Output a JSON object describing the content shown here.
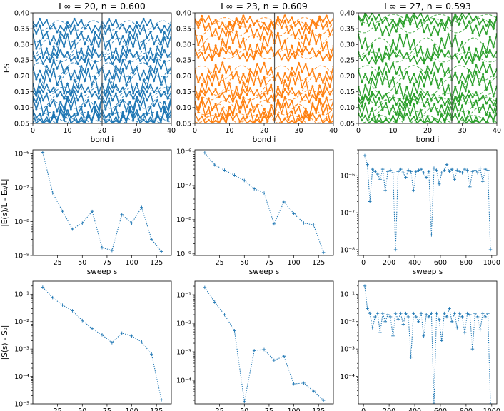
{
  "chart_data": [
    {
      "type": "line",
      "panel": "es-0",
      "title": "L∞ = 20, n = 0.600",
      "color": "#1f77b4",
      "xlabel": "bond i",
      "ylabel": "ES",
      "xlim": [
        0,
        40
      ],
      "ylim": [
        0.05,
        0.4
      ],
      "xticks": [
        0,
        10,
        20,
        30,
        40
      ],
      "yticks": [
        0.05,
        0.1,
        0.15,
        0.2,
        0.25,
        0.3,
        0.35,
        0.4
      ],
      "marker_x": 20,
      "period": 10,
      "levels": [
        0.36,
        0.33,
        0.29,
        0.26,
        0.22,
        0.18,
        0.15,
        0.12,
        0.09,
        0.07,
        0.06
      ]
    },
    {
      "type": "line",
      "panel": "es-1",
      "title": "L∞ = 23, n = 0.609",
      "color": "#ff7f0e",
      "xlabel": "bond i",
      "ylabel": "",
      "xlim": [
        0,
        40
      ],
      "ylim": [
        0.05,
        0.4
      ],
      "xticks": [
        0,
        10,
        20,
        30,
        40
      ],
      "yticks": [
        0.05,
        0.1,
        0.15,
        0.2,
        0.25,
        0.3,
        0.35,
        0.4
      ],
      "marker_x": 23,
      "period": 11.5,
      "levels": [
        0.37,
        0.35,
        0.3,
        0.27,
        0.21,
        0.17,
        0.14,
        0.1,
        0.08,
        0.06
      ]
    },
    {
      "type": "line",
      "panel": "es-2",
      "title": "L∞ = 27, n = 0.593",
      "color": "#2ca02c",
      "xlabel": "bond i",
      "ylabel": "",
      "xlim": [
        0,
        40
      ],
      "ylim": [
        0.05,
        0.4
      ],
      "xticks": [
        0,
        10,
        20,
        30,
        40
      ],
      "yticks": [
        0.05,
        0.1,
        0.15,
        0.2,
        0.25,
        0.3,
        0.35,
        0.4
      ],
      "marker_x": 27,
      "period": 13.5,
      "levels": [
        0.38,
        0.36,
        0.29,
        0.26,
        0.21,
        0.17,
        0.13,
        0.11,
        0.07,
        0.06
      ]
    },
    {
      "type": "line",
      "panel": "energy-0",
      "scale": "log",
      "color": "#1f77b4",
      "xlabel": "sweep s",
      "ylabel": "|E(s)/L - E₀/L|",
      "xlim": [
        0,
        140
      ],
      "ylim": [
        1e-09,
        1.3e-06
      ],
      "xticks": [
        25,
        50,
        75,
        100,
        125
      ],
      "yticks": [
        {
          "v": 1e-09,
          "label": "10⁻⁹"
        },
        {
          "v": 1e-08,
          "label": "10⁻⁸"
        },
        {
          "v": 1e-07,
          "label": "10⁻⁷"
        },
        {
          "v": 1e-06,
          "label": "10⁻⁶"
        }
      ],
      "x": [
        10,
        20,
        30,
        40,
        50,
        60,
        70,
        80,
        90,
        100,
        110,
        120,
        130
      ],
      "y": [
        1.1e-06,
        7e-08,
        2e-08,
        6e-09,
        9e-09,
        2e-08,
        1.7e-09,
        1.4e-09,
        1.6e-08,
        9e-09,
        2.6e-08,
        3e-09,
        1.3e-09
      ]
    },
    {
      "type": "line",
      "panel": "energy-1",
      "scale": "log",
      "color": "#1f77b4",
      "xlabel": "sweep s",
      "ylabel": "",
      "xlim": [
        0,
        140
      ],
      "ylim": [
        9e-10,
        1.1e-06
      ],
      "xticks": [
        25,
        50,
        75,
        100,
        125
      ],
      "yticks": [
        {
          "v": 1e-09,
          "label": "10⁻⁹"
        },
        {
          "v": 1e-08,
          "label": "10⁻⁸"
        },
        {
          "v": 1e-07,
          "label": "10⁻⁷"
        },
        {
          "v": 1e-06,
          "label": "10⁻⁶"
        }
      ],
      "x": [
        10,
        20,
        30,
        40,
        50,
        60,
        70,
        80,
        90,
        100,
        110,
        120,
        130
      ],
      "y": [
        9e-07,
        4e-07,
        2.8e-07,
        2e-07,
        1.4e-07,
        8e-08,
        6e-08,
        7.5e-09,
        3.3e-08,
        1.5e-08,
        8e-09,
        7e-09,
        1.1e-09
      ]
    },
    {
      "type": "line",
      "panel": "energy-2",
      "scale": "log",
      "color": "#1f77b4",
      "xlabel": "sweep s",
      "ylabel": "",
      "xlim": [
        -40,
        1040
      ],
      "ylim": [
        7e-09,
        5e-06
      ],
      "xticks": [
        0,
        200,
        400,
        600,
        800,
        1000
      ],
      "yticks": [
        {
          "v": 1e-08,
          "label": "10⁻⁸"
        },
        {
          "v": 1e-07,
          "label": "10⁻⁷"
        },
        {
          "v": 1e-06,
          "label": "10⁻⁶"
        }
      ],
      "x": [
        10,
        30,
        50,
        70,
        90,
        110,
        130,
        150,
        170,
        190,
        210,
        230,
        250,
        270,
        290,
        310,
        330,
        350,
        370,
        390,
        410,
        430,
        450,
        470,
        490,
        510,
        530,
        550,
        570,
        590,
        610,
        630,
        650,
        670,
        690,
        710,
        730,
        750,
        770,
        790,
        810,
        830,
        850,
        870,
        890,
        910,
        930,
        950,
        970,
        990
      ],
      "y": [
        3.5e-06,
        2e-06,
        2e-07,
        1.5e-06,
        1.3e-06,
        1.1e-06,
        8e-07,
        1.5e-06,
        4e-07,
        1.3e-06,
        1.4e-06,
        1.2e-06,
        1e-08,
        1.3e-06,
        1.5e-06,
        1.2e-06,
        9e-07,
        1.4e-06,
        1.3e-06,
        4e-07,
        1.3e-06,
        1.4e-06,
        1.5e-06,
        1.2e-06,
        9e-07,
        1.3e-06,
        2.5e-08,
        1.6e-06,
        1.4e-06,
        6e-07,
        1.2e-06,
        1.4e-06,
        2e-06,
        1.3e-06,
        1.5e-06,
        8e-07,
        1.4e-06,
        1.3e-06,
        1.2e-06,
        1.5e-06,
        1.4e-06,
        5e-07,
        1.3e-06,
        1.4e-06,
        1.2e-06,
        1.6e-06,
        7e-07,
        1.5e-06,
        1.4e-06,
        1e-08
      ]
    },
    {
      "type": "line",
      "panel": "entropy-0",
      "scale": "log",
      "color": "#1f77b4",
      "xlabel": "sweep s",
      "ylabel": "|S(s) - S₀|",
      "xlim": [
        0,
        140
      ],
      "ylim": [
        1e-05,
        0.3
      ],
      "xticks": [
        25,
        50,
        75,
        100,
        125
      ],
      "yticks": [
        {
          "v": 1e-05,
          "label": "10⁻⁵"
        },
        {
          "v": 0.0001,
          "label": "10⁻⁴"
        },
        {
          "v": 0.001,
          "label": "10⁻³"
        },
        {
          "v": 0.01,
          "label": "10⁻²"
        },
        {
          "v": 0.1,
          "label": "10⁻¹"
        }
      ],
      "x": [
        10,
        20,
        30,
        40,
        50,
        60,
        70,
        80,
        90,
        100,
        110,
        120,
        130
      ],
      "y": [
        0.18,
        0.075,
        0.04,
        0.025,
        0.011,
        0.0055,
        0.0033,
        0.0017,
        0.0038,
        0.003,
        0.0018,
        0.00065,
        1.4e-05
      ]
    },
    {
      "type": "line",
      "panel": "entropy-1",
      "scale": "log",
      "color": "#1f77b4",
      "xlabel": "sweep s",
      "ylabel": "",
      "xlim": [
        0,
        140
      ],
      "ylim": [
        1.5e-05,
        0.3
      ],
      "xticks": [
        25,
        50,
        75,
        100,
        125
      ],
      "yticks": [
        {
          "v": 0.0001,
          "label": "10⁻⁴"
        },
        {
          "v": 0.001,
          "label": "10⁻³"
        },
        {
          "v": 0.01,
          "label": "10⁻²"
        },
        {
          "v": 0.1,
          "label": "10⁻¹"
        }
      ],
      "x": [
        10,
        20,
        30,
        40,
        50,
        60,
        70,
        80,
        90,
        100,
        110,
        120,
        130
      ],
      "y": [
        0.18,
        0.055,
        0.02,
        0.0055,
        1.8e-05,
        0.0011,
        0.0012,
        0.0005,
        0.0007,
        7.5e-05,
        8e-05,
        4.2e-05,
        2e-05
      ]
    },
    {
      "type": "line",
      "panel": "entropy-2",
      "scale": "log",
      "color": "#1f77b4",
      "xlabel": "sweep s",
      "ylabel": "",
      "xlim": [
        -40,
        1040
      ],
      "ylim": [
        1e-05,
        0.3
      ],
      "xticks": [
        0,
        200,
        400,
        600,
        800,
        1000
      ],
      "yticks": [
        {
          "v": 0.0001,
          "label": "10⁻⁴"
        },
        {
          "v": 0.001,
          "label": "10⁻³"
        },
        {
          "v": 0.01,
          "label": "10⁻²"
        },
        {
          "v": 0.1,
          "label": "10⁻¹"
        }
      ],
      "x": [
        10,
        30,
        50,
        70,
        90,
        110,
        130,
        150,
        170,
        190,
        210,
        230,
        250,
        270,
        290,
        310,
        330,
        350,
        370,
        390,
        410,
        430,
        450,
        470,
        490,
        510,
        530,
        550,
        570,
        590,
        610,
        630,
        650,
        670,
        690,
        710,
        730,
        750,
        770,
        790,
        810,
        830,
        850,
        870,
        890,
        910,
        930,
        950,
        970,
        990
      ],
      "y": [
        0.2,
        0.03,
        0.02,
        0.006,
        0.015,
        0.02,
        0.004,
        0.02,
        0.01,
        0.018,
        0.015,
        0.003,
        0.02,
        0.012,
        0.02,
        0.008,
        0.02,
        0.015,
        0.0005,
        0.02,
        0.015,
        0.01,
        0.02,
        0.003,
        0.018,
        0.015,
        0.02,
        1e-05,
        0.02,
        0.012,
        0.002,
        0.02,
        0.015,
        0.03,
        0.01,
        0.02,
        0.006,
        0.02,
        0.015,
        0.004,
        0.02,
        0.018,
        0.001,
        0.02,
        0.015,
        0.005,
        0.02,
        0.015,
        0.02,
        1e-05
      ]
    }
  ]
}
